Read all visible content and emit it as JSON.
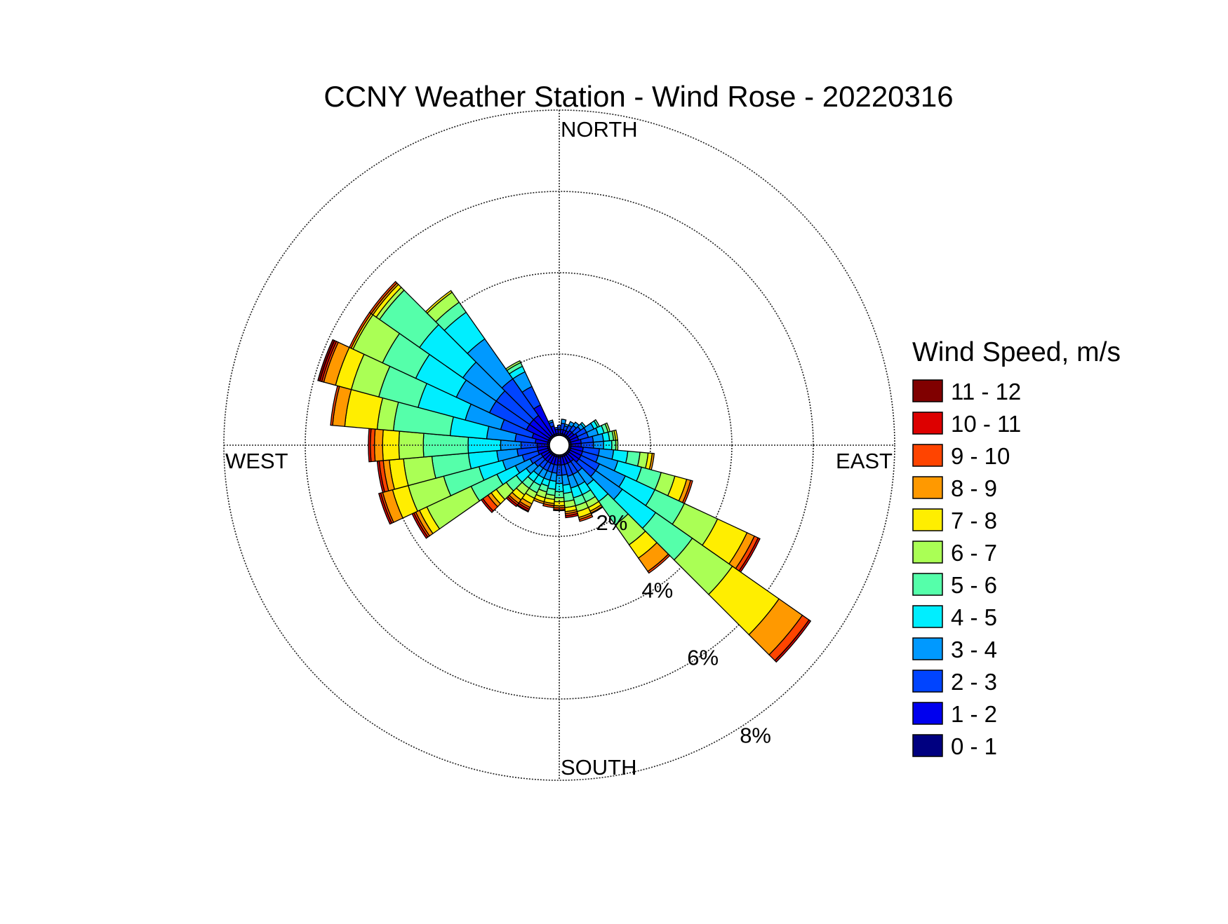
{
  "chart_data": {
    "type": "wind-rose",
    "title": "CCNY Weather Station - Wind Rose - 20220316",
    "direction_labels": {
      "north": "NORTH",
      "east": "EAST",
      "south": "SOUTH",
      "west": "WEST"
    },
    "radial_axis": {
      "unit": "%",
      "max": 8,
      "circles": [
        2,
        4,
        6,
        8
      ],
      "tick_labels": [
        "2%",
        "4%",
        "6%",
        "8%"
      ]
    },
    "legend": {
      "title": "Wind Speed, m/s",
      "placement": "right",
      "bins": [
        {
          "label": "11 - 12",
          "color": "#800000"
        },
        {
          "label": "10 - 11",
          "color": "#dd0000"
        },
        {
          "label": "9 - 10",
          "color": "#ff4400"
        },
        {
          "label": "8 - 9",
          "color": "#ff9900"
        },
        {
          "label": "7 - 8",
          "color": "#ffee00"
        },
        {
          "label": "6 - 7",
          "color": "#aaff55"
        },
        {
          "label": "5 - 6",
          "color": "#55ffaa"
        },
        {
          "label": "4 - 5",
          "color": "#00eeff"
        },
        {
          "label": "3 - 4",
          "color": "#0099ff"
        },
        {
          "label": "2 - 3",
          "color": "#0044ff"
        },
        {
          "label": "1 - 2",
          "color": "#0000ee"
        },
        {
          "label": "0 - 1",
          "color": "#000080"
        }
      ]
    },
    "bin_order_from_center": [
      "0 - 1",
      "1 - 2",
      "2 - 3",
      "3 - 4",
      "4 - 5",
      "5 - 6",
      "6 - 7",
      "7 - 8",
      "8 - 9",
      "9 - 10",
      "10 - 11",
      "11 - 12"
    ],
    "sector_width_deg": 10,
    "sectors": [
      {
        "dir": 0,
        "values": [
          0.05,
          0.1,
          0.1,
          0,
          0,
          0,
          0,
          0,
          0,
          0,
          0,
          0
        ]
      },
      {
        "dir": 10,
        "values": [
          0.05,
          0.1,
          0.15,
          0.1,
          0,
          0,
          0,
          0,
          0,
          0,
          0,
          0
        ]
      },
      {
        "dir": 20,
        "values": [
          0.05,
          0.1,
          0.1,
          0.05,
          0,
          0,
          0,
          0,
          0,
          0,
          0,
          0
        ]
      },
      {
        "dir": 30,
        "values": [
          0.05,
          0.1,
          0.15,
          0.1,
          0,
          0,
          0,
          0,
          0,
          0,
          0,
          0
        ]
      },
      {
        "dir": 40,
        "values": [
          0.05,
          0.15,
          0.15,
          0.1,
          0,
          0,
          0,
          0,
          0,
          0,
          0,
          0
        ]
      },
      {
        "dir": 50,
        "values": [
          0.05,
          0.15,
          0.2,
          0.1,
          0.05,
          0,
          0,
          0,
          0,
          0,
          0,
          0
        ]
      },
      {
        "dir": 60,
        "values": [
          0.05,
          0.2,
          0.25,
          0.2,
          0.1,
          0.05,
          0,
          0,
          0,
          0,
          0,
          0
        ]
      },
      {
        "dir": 70,
        "values": [
          0.05,
          0.2,
          0.25,
          0.25,
          0.15,
          0.1,
          0.05,
          0,
          0,
          0,
          0,
          0
        ]
      },
      {
        "dir": 80,
        "values": [
          0.05,
          0.25,
          0.3,
          0.25,
          0.15,
          0.1,
          0.05,
          0.05,
          0,
          0,
          0,
          0
        ]
      },
      {
        "dir": 90,
        "values": [
          0.05,
          0.25,
          0.3,
          0.25,
          0.2,
          0.1,
          0.05,
          0,
          0,
          0,
          0,
          0
        ]
      },
      {
        "dir": 100,
        "values": [
          0.05,
          0.3,
          0.4,
          0.35,
          0.35,
          0.3,
          0.2,
          0.1,
          0.05,
          0,
          0,
          0
        ]
      },
      {
        "dir": 110,
        "values": [
          0.05,
          0.3,
          0.4,
          0.5,
          0.6,
          0.5,
          0.35,
          0.3,
          0.1,
          0.05,
          0,
          0
        ]
      },
      {
        "dir": 120,
        "values": [
          0.05,
          0.3,
          0.5,
          0.7,
          0.8,
          0.8,
          0.9,
          0.8,
          0.2,
          0.1,
          0.05,
          0
        ]
      },
      {
        "dir": 130,
        "values": [
          0.05,
          0.3,
          0.5,
          0.8,
          1.0,
          1.1,
          1.2,
          1.4,
          0.7,
          0.2,
          0.05,
          0
        ]
      },
      {
        "dir": 140,
        "values": [
          0.05,
          0.2,
          0.3,
          0.4,
          0.5,
          0.7,
          0.6,
          0.4,
          0.4,
          0.05,
          0,
          0
        ]
      },
      {
        "dir": 150,
        "values": [
          0.05,
          0.2,
          0.3,
          0.3,
          0.25,
          0.2,
          0.15,
          0.1,
          0.05,
          0.02,
          0,
          0
        ]
      },
      {
        "dir": 160,
        "values": [
          0.05,
          0.2,
          0.3,
          0.3,
          0.25,
          0.2,
          0.15,
          0.15,
          0.05,
          0.05,
          0,
          0
        ]
      },
      {
        "dir": 170,
        "values": [
          0.05,
          0.2,
          0.25,
          0.25,
          0.2,
          0.2,
          0.15,
          0.1,
          0.05,
          0.05,
          0.05,
          0
        ]
      },
      {
        "dir": 180,
        "values": [
          0.05,
          0.2,
          0.25,
          0.2,
          0.2,
          0.15,
          0.1,
          0.1,
          0.05,
          0.05,
          0.02,
          0
        ]
      },
      {
        "dir": 190,
        "values": [
          0.05,
          0.2,
          0.2,
          0.2,
          0.2,
          0.15,
          0.1,
          0.1,
          0.05,
          0.05,
          0,
          0
        ]
      },
      {
        "dir": 200,
        "values": [
          0.05,
          0.2,
          0.2,
          0.2,
          0.15,
          0.15,
          0.15,
          0.1,
          0.05,
          0,
          0,
          0
        ]
      },
      {
        "dir": 210,
        "values": [
          0.05,
          0.2,
          0.2,
          0.2,
          0.2,
          0.2,
          0.15,
          0.15,
          0.1,
          0.05,
          0.05,
          0.02
        ]
      },
      {
        "dir": 220,
        "values": [
          0.05,
          0.2,
          0.2,
          0.2,
          0.2,
          0.2,
          0.2,
          0.15,
          0.1,
          0.05,
          0.05,
          0
        ]
      },
      {
        "dir": 230,
        "values": [
          0.05,
          0.2,
          0.25,
          0.25,
          0.3,
          0.3,
          0.3,
          0.15,
          0.1,
          0.15,
          0.05,
          0
        ]
      },
      {
        "dir": 240,
        "values": [
          0.05,
          0.2,
          0.3,
          0.4,
          0.5,
          0.7,
          1.2,
          0.2,
          0.1,
          0.05,
          0.05,
          0
        ]
      },
      {
        "dir": 250,
        "values": [
          0.05,
          0.25,
          0.4,
          0.5,
          0.6,
          0.9,
          0.9,
          0.4,
          0.25,
          0.05,
          0.05,
          0
        ]
      },
      {
        "dir": 260,
        "values": [
          0.05,
          0.25,
          0.5,
          0.5,
          0.7,
          0.9,
          0.7,
          0.35,
          0.15,
          0.1,
          0.05,
          0
        ]
      },
      {
        "dir": 270,
        "values": [
          0.05,
          0.25,
          0.4,
          0.5,
          0.8,
          1.1,
          0.6,
          0.4,
          0.2,
          0.1,
          0.05,
          0
        ]
      },
      {
        "dir": 280,
        "values": [
          0.05,
          0.3,
          0.5,
          0.7,
          0.9,
          1.4,
          0.4,
          0.8,
          0.3,
          0.05,
          0,
          0
        ]
      },
      {
        "dir": 290,
        "values": [
          0.05,
          0.4,
          0.8,
          0.9,
          1.2,
          1.0,
          0.7,
          0.4,
          0.3,
          0.05,
          0.05,
          0.05
        ]
      },
      {
        "dir": 300,
        "values": [
          0.05,
          0.6,
          1.0,
          0.9,
          1.1,
          0.9,
          0.8,
          0.05,
          0,
          0.05,
          0,
          0
        ]
      },
      {
        "dir": 310,
        "values": [
          0.05,
          0.6,
          1.0,
          1.0,
          1.3,
          1.2,
          0.1,
          0.1,
          0.05,
          0.05,
          0,
          0
        ]
      },
      {
        "dir": 320,
        "values": [
          0.05,
          0.6,
          1.1,
          1.2,
          0.8,
          0.3,
          0.3,
          0.05,
          0,
          0,
          0,
          0
        ]
      },
      {
        "dir": 330,
        "values": [
          0.05,
          0.8,
          0.5,
          0.4,
          0.15,
          0.1,
          0.05,
          0,
          0,
          0,
          0,
          0
        ]
      },
      {
        "dir": 340,
        "values": [
          0.05,
          0.2,
          0.1,
          0.05,
          0,
          0,
          0,
          0,
          0,
          0,
          0,
          0
        ]
      },
      {
        "dir": 350,
        "values": [
          0.05,
          0.1,
          0.05,
          0,
          0,
          0,
          0,
          0,
          0,
          0,
          0,
          0
        ]
      }
    ]
  }
}
